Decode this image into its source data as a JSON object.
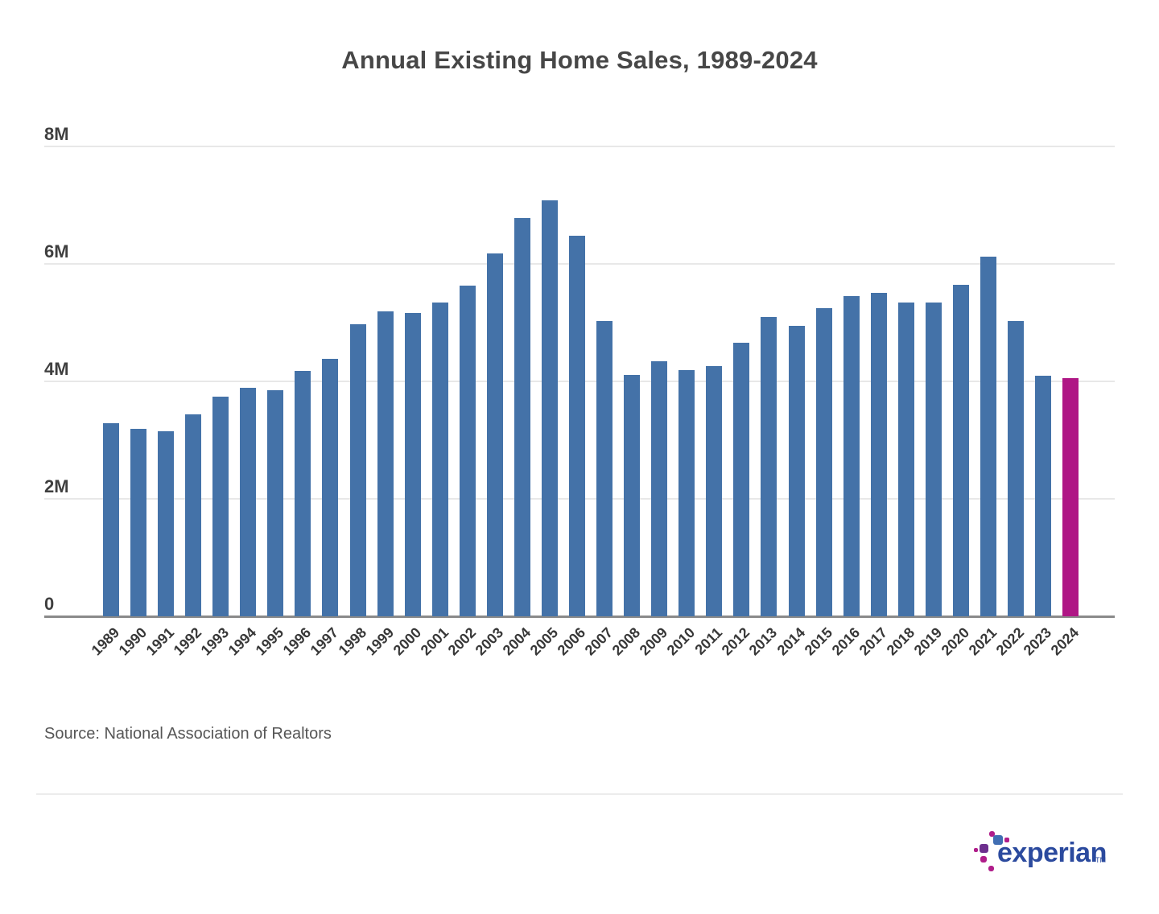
{
  "chart_data": {
    "type": "bar",
    "title": "Annual Existing Home Sales, 1989-2024",
    "categories": [
      "1989",
      "1990",
      "1991",
      "1992",
      "1993",
      "1994",
      "1995",
      "1996",
      "1997",
      "1998",
      "1999",
      "2000",
      "2001",
      "2002",
      "2003",
      "2004",
      "2005",
      "2006",
      "2007",
      "2008",
      "2009",
      "2010",
      "2011",
      "2012",
      "2013",
      "2014",
      "2015",
      "2016",
      "2017",
      "2018",
      "2019",
      "2020",
      "2021",
      "2022",
      "2023",
      "2024"
    ],
    "values": [
      3.29,
      3.19,
      3.15,
      3.44,
      3.74,
      3.89,
      3.85,
      4.18,
      4.38,
      4.97,
      5.19,
      5.17,
      5.34,
      5.63,
      6.18,
      6.78,
      7.08,
      6.48,
      5.03,
      4.11,
      4.34,
      4.19,
      4.26,
      4.66,
      5.09,
      4.94,
      5.25,
      5.45,
      5.51,
      5.34,
      5.34,
      5.64,
      6.12,
      5.03,
      4.09,
      4.06
    ],
    "unit": "millions of homes",
    "xlabel": "",
    "ylabel": "",
    "ylim": [
      0,
      8
    ],
    "y_ticks": [
      {
        "label": "8M",
        "value": 8
      },
      {
        "label": "6M",
        "value": 6
      },
      {
        "label": "4M",
        "value": 4
      },
      {
        "label": "2M",
        "value": 2
      },
      {
        "label": "0",
        "value": 0
      }
    ],
    "grid": true,
    "legend": "none",
    "bar_color": "#4472a8",
    "highlight_color": "#af1685",
    "highlight_category": "2024"
  },
  "source_note": "Source: National Association of Realtors",
  "logo": {
    "wordmark": "experian",
    "trademark": "TM",
    "wordmark_color": "#2b4a9e",
    "block_colors": {
      "blue": "#406eb3",
      "purple": "#6d2f8e",
      "magenta": "#b01d8a"
    }
  }
}
